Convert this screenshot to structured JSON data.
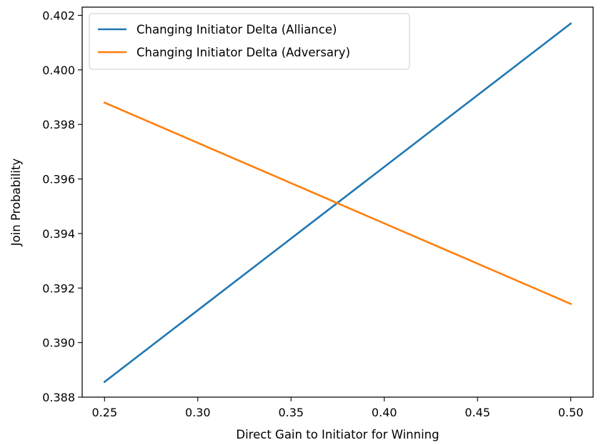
{
  "chart_data": {
    "type": "line",
    "title": "",
    "xlabel": "Direct Gain to Initiator for Winning",
    "ylabel": "Join Probability",
    "xlim": [
      0.238,
      0.512
    ],
    "ylim": [
      0.388,
      0.4023
    ],
    "xticks": [
      0.25,
      0.3,
      0.35,
      0.4,
      0.45,
      0.5
    ],
    "xtick_labels": [
      "0.25",
      "0.30",
      "0.35",
      "0.40",
      "0.45",
      "0.50"
    ],
    "yticks": [
      0.388,
      0.39,
      0.392,
      0.394,
      0.396,
      0.398,
      0.4,
      0.402
    ],
    "ytick_labels": [
      "0.388",
      "0.390",
      "0.392",
      "0.394",
      "0.396",
      "0.398",
      "0.400",
      "0.402"
    ],
    "grid": false,
    "legend_position": "top-left",
    "x": [
      0.25,
      0.5
    ],
    "series": [
      {
        "name": "Changing Initiator Delta (Alliance)",
        "color": "#1f77b4",
        "values": [
          0.38856,
          0.4017
        ]
      },
      {
        "name": "Changing Initiator Delta (Adversary)",
        "color": "#ff7f0e",
        "values": [
          0.3988,
          0.39142
        ]
      }
    ]
  }
}
